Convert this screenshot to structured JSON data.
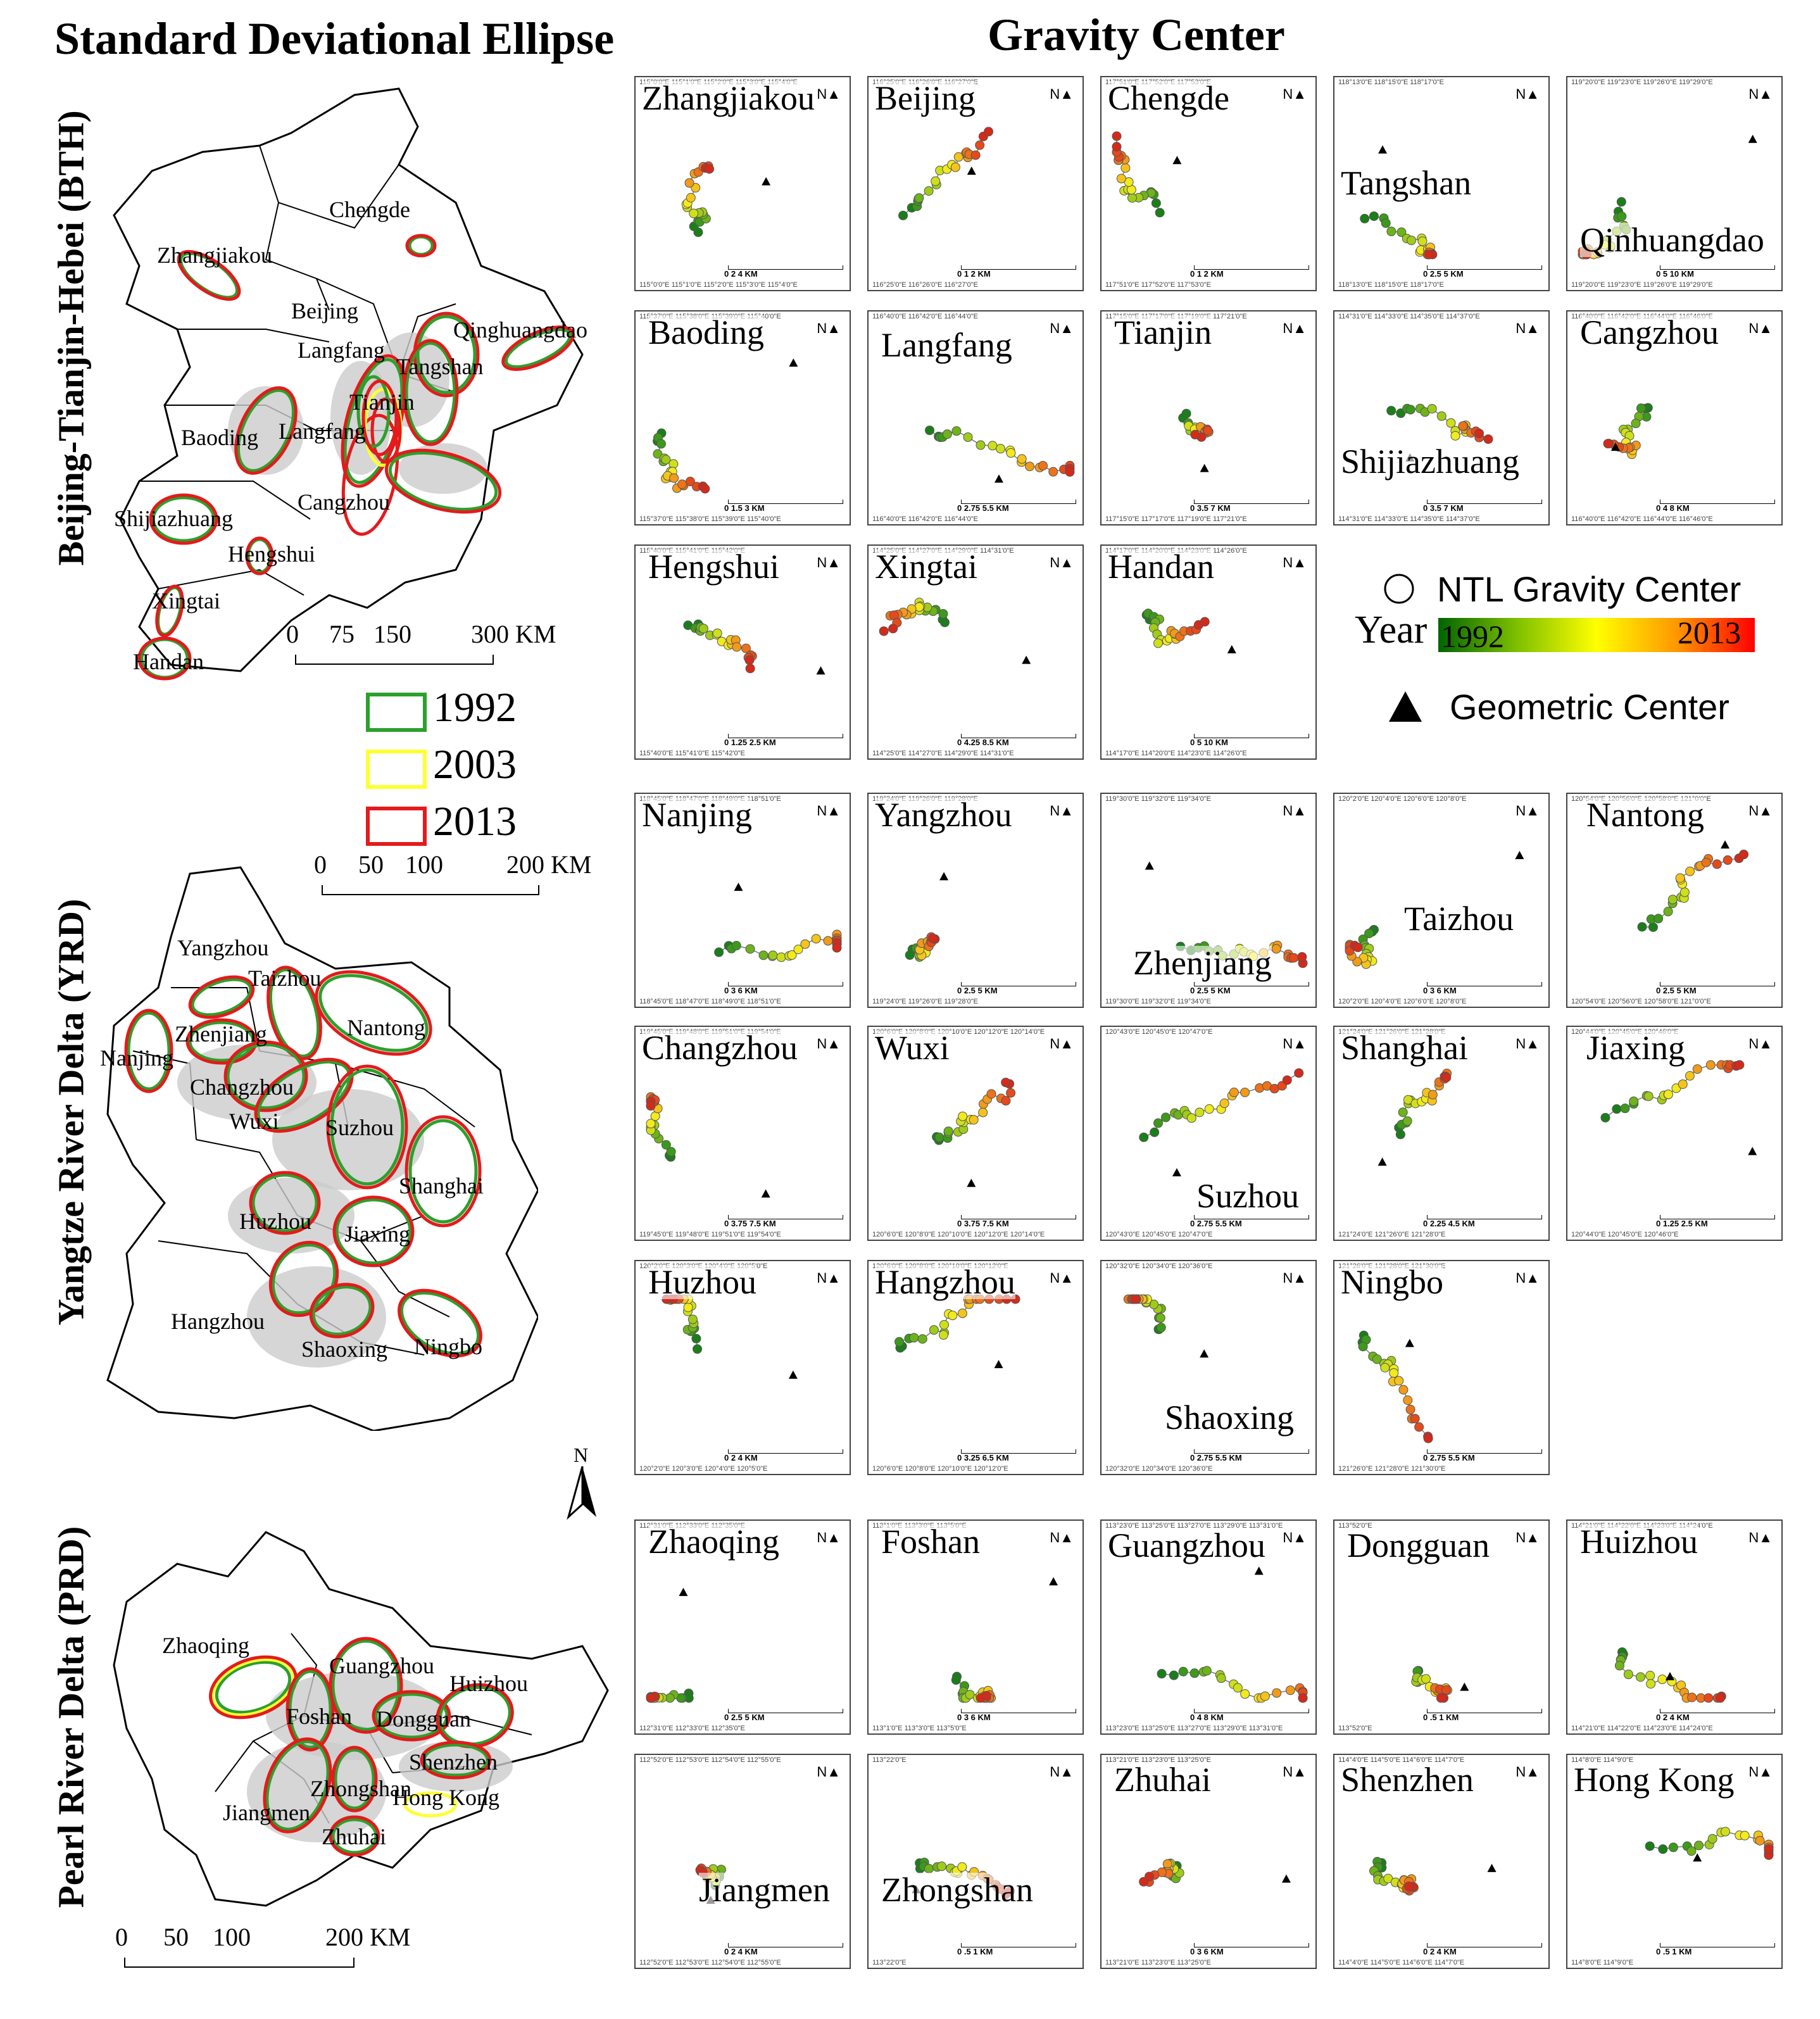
{
  "titles": {
    "left": "Standard Deviational Ellipse",
    "right": "Gravity Center"
  },
  "regions": {
    "bth": "Beijing-Tianjin-Hebei (BTH)",
    "yrd": "Yangtze River Delta (YRD)",
    "prd": "Pearl River Delta (PRD)"
  },
  "bth_map": {
    "cities": [
      "Chengde",
      "Zhangjiakou",
      "Beijing",
      "Langfang",
      "Qinghuangdao",
      "Tangshan",
      "Tianjin",
      "Baoding",
      "Langfang",
      "Cangzhou",
      "Shijiazhuang",
      "Hengshui",
      "Xingtai",
      "Handan"
    ],
    "scale": [
      "0",
      "75",
      "150",
      "300 KM"
    ]
  },
  "ellipse_legend": {
    "years": [
      "1992",
      "2003",
      "2013"
    ],
    "colors": [
      "#2ca02c",
      "#ffff33",
      "#e41a1c"
    ]
  },
  "yrd_map": {
    "cities": [
      "Yangzhou",
      "Taizhou",
      "Nanjing",
      "Zhenjiang",
      "Nantong",
      "Changzhou",
      "Wuxi",
      "Suzhou",
      "Shanghai",
      "Huzhou",
      "Jiaxing",
      "Hangzhou",
      "Shaoxing",
      "Ningbo"
    ],
    "scale": [
      "0",
      "50",
      "100",
      "200 KM"
    ]
  },
  "north_label": "N",
  "prd_map": {
    "cities": [
      "Zhaoqing",
      "Guangzhou",
      "Huizhou",
      "Foshan",
      "Dongguan",
      "Shenzhen",
      "Zhongshan",
      "Hong Kong",
      "Jiangmen",
      "Zhuhai"
    ],
    "scale": [
      "0",
      "50",
      "100",
      "200 KM"
    ]
  },
  "gravity_legend": {
    "ntl": "NTL Gravity Center",
    "year": "Year",
    "start": "1992",
    "end": "2013",
    "geo": "Geometric Center"
  },
  "panels": [
    {
      "name": "Zhangjiakou",
      "scale": "0 2 4 KM",
      "ticks": "115°0'0\"E 115°1'0\"E 115°2'0\"E 115°3'0\"E 115°4'0\"E"
    },
    {
      "name": "Beijing",
      "scale": "0 1 2 KM",
      "ticks": "116°25'0\"E 116°26'0\"E 116°27'0\"E"
    },
    {
      "name": "Chengde",
      "scale": "0 1 2 KM",
      "ticks": "117°51'0\"E 117°52'0\"E 117°53'0\"E"
    },
    {
      "name": "Tangshan",
      "scale": "0 2.5 5 KM",
      "ticks": "118°13'0\"E 118°15'0\"E 118°17'0\"E"
    },
    {
      "name": "Qinhuangdao",
      "scale": "0 5 10 KM",
      "ticks": "119°20'0\"E 119°23'0\"E 119°26'0\"E 119°29'0\"E"
    },
    {
      "name": "Baoding",
      "scale": "0 1.5 3 KM",
      "ticks": "115°37'0\"E 115°38'0\"E 115°39'0\"E 115°40'0\"E"
    },
    {
      "name": "Langfang",
      "scale": "0 2.75 5.5 KM",
      "ticks": "116°40'0\"E 116°42'0\"E 116°44'0\"E"
    },
    {
      "name": "Tianjin",
      "scale": "0 3.5 7 KM",
      "ticks": "117°15'0\"E 117°17'0\"E 117°19'0\"E 117°21'0\"E"
    },
    {
      "name": "Shijiazhuang",
      "scale": "0 3.5 7 KM",
      "ticks": "114°31'0\"E 114°33'0\"E 114°35'0\"E 114°37'0\"E"
    },
    {
      "name": "Cangzhou",
      "scale": "0 4 8 KM",
      "ticks": "116°40'0\"E 116°42'0\"E 116°44'0\"E 116°46'0\"E"
    },
    {
      "name": "Hengshui",
      "scale": "0 1.25 2.5 KM",
      "ticks": "115°40'0\"E 115°41'0\"E 115°42'0\"E"
    },
    {
      "name": "Xingtai",
      "scale": "0 4.25 8.5 KM",
      "ticks": "114°25'0\"E 114°27'0\"E 114°29'0\"E 114°31'0\"E"
    },
    {
      "name": "Handan",
      "scale": "0 5 10 KM",
      "ticks": "114°17'0\"E 114°20'0\"E 114°23'0\"E 114°26'0\"E"
    },
    {
      "name": "Nanjing",
      "scale": "0 3 6 KM",
      "ticks": "118°45'0\"E 118°47'0\"E 118°49'0\"E 118°51'0\"E"
    },
    {
      "name": "Yangzhou",
      "scale": "0 2.5 5 KM",
      "ticks": "119°24'0\"E 119°26'0\"E 119°28'0\"E"
    },
    {
      "name": "Zhenjiang",
      "scale": "0 2.5 5 KM",
      "ticks": "119°30'0\"E 119°32'0\"E 119°34'0\"E"
    },
    {
      "name": "Taizhou",
      "scale": "0 3 6 KM",
      "ticks": "120°2'0\"E 120°4'0\"E 120°6'0\"E 120°8'0\"E"
    },
    {
      "name": "Nantong",
      "scale": "0 2.5 5 KM",
      "ticks": "120°54'0\"E 120°56'0\"E 120°58'0\"E 121°0'0\"E"
    },
    {
      "name": "Changzhou",
      "scale": "0 3.75 7.5 KM",
      "ticks": "119°45'0\"E 119°48'0\"E 119°51'0\"E 119°54'0\"E"
    },
    {
      "name": "Wuxi",
      "scale": "0 3.75 7.5 KM",
      "ticks": "120°6'0\"E 120°8'0\"E 120°10'0\"E 120°12'0\"E 120°14'0\"E"
    },
    {
      "name": "Suzhou",
      "scale": "0 2.75 5.5 KM",
      "ticks": "120°43'0\"E 120°45'0\"E 120°47'0\"E"
    },
    {
      "name": "Shanghai",
      "scale": "0 2.25 4.5 KM",
      "ticks": "121°24'0\"E 121°26'0\"E 121°28'0\"E"
    },
    {
      "name": "Jiaxing",
      "scale": "0 1.25 2.5 KM",
      "ticks": "120°44'0\"E 120°45'0\"E 120°46'0\"E"
    },
    {
      "name": "Huzhou",
      "scale": "0 2 4 KM",
      "ticks": "120°2'0\"E 120°3'0\"E 120°4'0\"E 120°5'0\"E"
    },
    {
      "name": "Hangzhou",
      "scale": "0 3.25 6.5 KM",
      "ticks": "120°6'0\"E 120°8'0\"E 120°10'0\"E 120°12'0\"E"
    },
    {
      "name": "Shaoxing",
      "scale": "0 2.75 5.5 KM",
      "ticks": "120°32'0\"E 120°34'0\"E 120°36'0\"E"
    },
    {
      "name": "Ningbo",
      "scale": "0 2.75 5.5 KM",
      "ticks": "121°26'0\"E 121°28'0\"E 121°30'0\"E"
    },
    {
      "name": "Zhaoqing",
      "scale": "0 2.5 5 KM",
      "ticks": "112°31'0\"E 112°33'0\"E 112°35'0\"E"
    },
    {
      "name": "Foshan",
      "scale": "0 3 6 KM",
      "ticks": "113°1'0\"E 113°3'0\"E 113°5'0\"E"
    },
    {
      "name": "Guangzhou",
      "scale": "0 4 8 KM",
      "ticks": "113°23'0\"E 113°25'0\"E 113°27'0\"E 113°29'0\"E 113°31'0\"E"
    },
    {
      "name": "Dongguan",
      "scale": "0 .5 1 KM",
      "ticks": "113°52'0\"E"
    },
    {
      "name": "Huizhou",
      "scale": "0 2 4 KM",
      "ticks": "114°21'0\"E 114°22'0\"E 114°23'0\"E 114°24'0\"E"
    },
    {
      "name": "Jiangmen",
      "scale": "0 2 4 KM",
      "ticks": "112°52'0\"E 112°53'0\"E 112°54'0\"E 112°55'0\"E"
    },
    {
      "name": "Zhongshan",
      "scale": "0 .5 1 KM",
      "ticks": "113°22'0\"E"
    },
    {
      "name": "Zhuhai",
      "scale": "0 3 6 KM",
      "ticks": "113°21'0\"E 113°23'0\"E 113°25'0\"E"
    },
    {
      "name": "Shenzhen",
      "scale": "0 2 4 KM",
      "ticks": "114°4'0\"E 114°5'0\"E 114°6'0\"E 114°7'0\"E"
    },
    {
      "name": "Hong Kong",
      "scale": "0 .5 1 KM",
      "ticks": "114°8'0\"E 114°9'0\"E"
    }
  ]
}
